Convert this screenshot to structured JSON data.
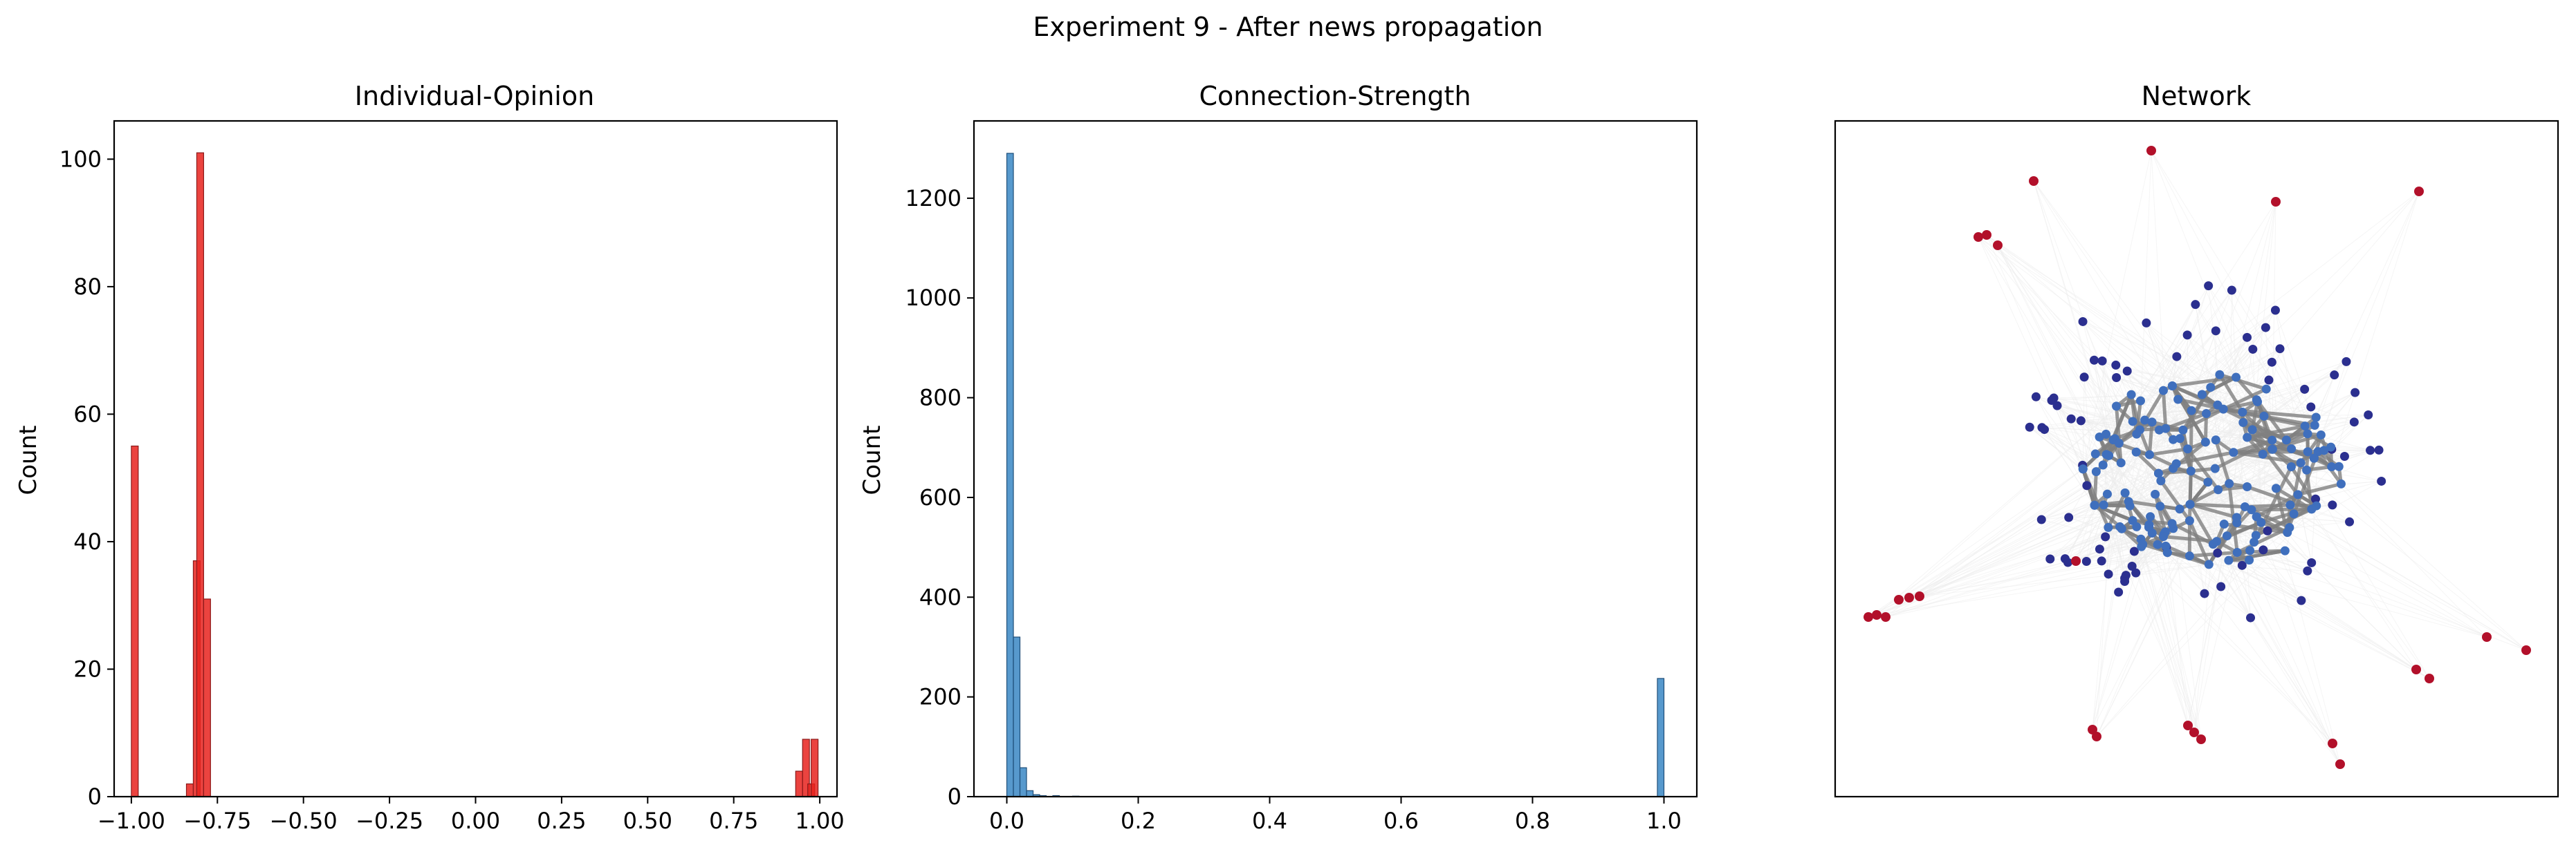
{
  "figure": {
    "suptitle": "Experiment 9 - After news propagation"
  },
  "chart_data": [
    {
      "type": "bar",
      "subtype": "histogram",
      "title": "Individual-Opinion",
      "xlabel": "",
      "ylabel": "Count",
      "xlim": [
        -1.05,
        1.05
      ],
      "ylim": [
        0,
        106
      ],
      "bin_width": 0.02,
      "color": "#e8221d",
      "edgecolor": "#8b1a1a",
      "xticks": [
        -1.0,
        -0.75,
        -0.5,
        -0.25,
        0.0,
        0.25,
        0.5,
        0.75,
        1.0
      ],
      "xtick_labels": [
        "−1.00",
        "−0.75",
        "−0.50",
        "−0.25",
        "0.00",
        "0.25",
        "0.50",
        "0.75",
        "1.00"
      ],
      "yticks": [
        0,
        20,
        40,
        60,
        80,
        100
      ],
      "ytick_labels": [
        "0",
        "20",
        "40",
        "60",
        "80",
        "100"
      ],
      "bins": [
        {
          "x0": -1.0,
          "value": 55
        },
        {
          "x0": -0.84,
          "value": 2
        },
        {
          "x0": -0.82,
          "value": 37
        },
        {
          "x0": -0.81,
          "value": 101
        },
        {
          "x0": -0.79,
          "value": 31
        },
        {
          "x0": 0.93,
          "value": 4
        },
        {
          "x0": 0.95,
          "value": 9
        },
        {
          "x0": 0.965,
          "value": 2
        },
        {
          "x0": 0.975,
          "value": 9
        }
      ]
    },
    {
      "type": "bar",
      "subtype": "histogram",
      "title": "Connection-Strength",
      "xlabel": "",
      "ylabel": "Count",
      "xlim": [
        -0.05,
        1.05
      ],
      "ylim": [
        0,
        1355
      ],
      "bin_width": 0.01,
      "color": "#3a87c4",
      "edgecolor": "#1f4e79",
      "xticks": [
        0.0,
        0.2,
        0.4,
        0.6,
        0.8,
        1.0
      ],
      "xtick_labels": [
        "0.0",
        "0.2",
        "0.4",
        "0.6",
        "0.8",
        "1.0"
      ],
      "yticks": [
        0,
        200,
        400,
        600,
        800,
        1000,
        1200
      ],
      "ytick_labels": [
        "0",
        "200",
        "400",
        "600",
        "800",
        "1000",
        "1200"
      ],
      "bins": [
        {
          "x0": 0.0,
          "value": 1290
        },
        {
          "x0": 0.01,
          "value": 320
        },
        {
          "x0": 0.02,
          "value": 58
        },
        {
          "x0": 0.03,
          "value": 12
        },
        {
          "x0": 0.04,
          "value": 4
        },
        {
          "x0": 0.05,
          "value": 2
        },
        {
          "x0": 0.07,
          "value": 2
        },
        {
          "x0": 0.1,
          "value": 1
        },
        {
          "x0": 0.99,
          "value": 237
        }
      ]
    },
    {
      "type": "scatter",
      "subtype": "network",
      "title": "Network",
      "legend": false,
      "ticks": false,
      "colors": {
        "negative_node": "#2b2f8f",
        "core_node": "#3f6fbd",
        "positive_node": "#b2102a",
        "strong_edge": "#7f7f7f",
        "weak_edge": "#ececec"
      }
    }
  ]
}
